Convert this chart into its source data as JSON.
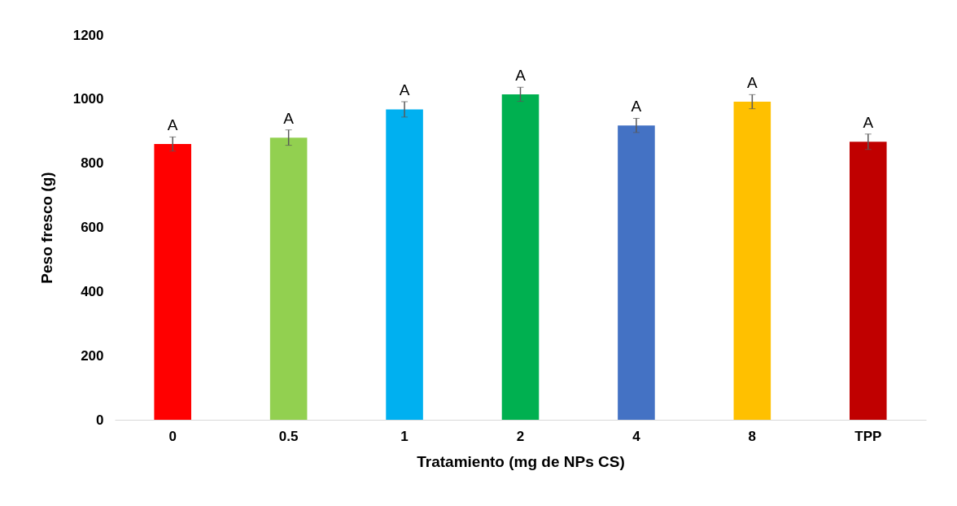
{
  "chart_data": {
    "type": "bar",
    "xlabel": "Tratamiento (mg de NPs CS)",
    "ylabel": "Peso fresco (g)",
    "categories": [
      "0",
      "0.5",
      "1",
      "2",
      "4",
      "8",
      "TPP"
    ],
    "values": [
      860,
      880,
      968,
      1015,
      918,
      992,
      867
    ],
    "errors": [
      22,
      24,
      24,
      22,
      22,
      22,
      24
    ],
    "colors": [
      "#ff0000",
      "#92d050",
      "#00b0f0",
      "#00b050",
      "#4472c4",
      "#ffc000",
      "#c00000"
    ],
    "ylim": [
      0,
      1200
    ],
    "yticks": [
      0,
      200,
      400,
      600,
      800,
      1000,
      1200
    ],
    "grid": false,
    "annotations": [
      {
        "text": "A",
        "x": "0",
        "y": 882
      },
      {
        "text": "A",
        "x": "0.5",
        "y": 904
      },
      {
        "text": "A",
        "x": "1",
        "y": 992
      },
      {
        "text": "A",
        "x": "2",
        "y": 1037
      },
      {
        "text": "A",
        "x": "4",
        "y": 940
      },
      {
        "text": "A",
        "x": "8",
        "y": 1014
      },
      {
        "text": "A",
        "x": "TPP",
        "y": 891
      }
    ]
  }
}
